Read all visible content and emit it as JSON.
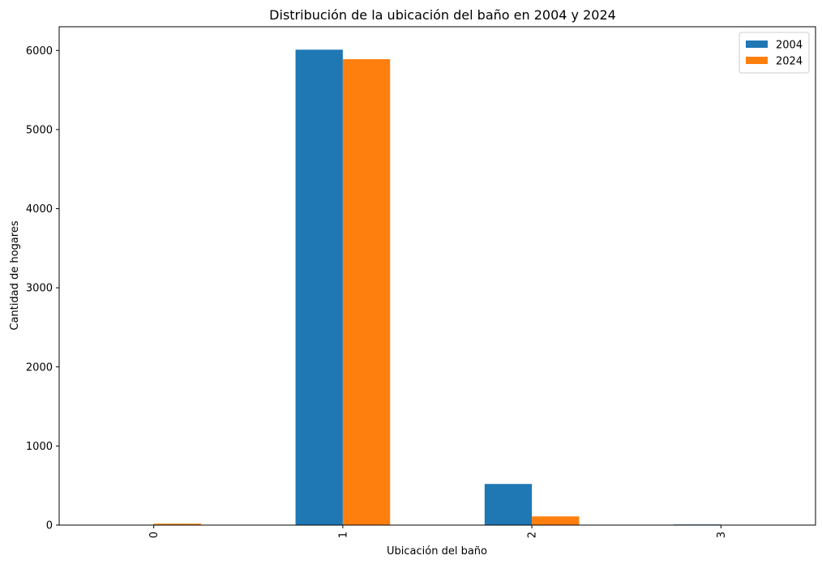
{
  "chart_data": {
    "type": "bar",
    "title": "Distribución de la ubicación del baño en 2004 y 2024",
    "xlabel": "Ubicación del baño",
    "ylabel": "Cantidad de hogares",
    "categories": [
      "0",
      "1",
      "2",
      "3"
    ],
    "series": [
      {
        "name": "2004",
        "color": "#1f77b4",
        "values": [
          0,
          6010,
          520,
          8
        ]
      },
      {
        "name": "2024",
        "color": "#ff7f0e",
        "values": [
          18,
          5890,
          110,
          0
        ]
      }
    ],
    "ylim": [
      0,
      6300
    ],
    "yticks": [
      0,
      1000,
      2000,
      3000,
      4000,
      5000,
      6000
    ],
    "xtick_rotation": 90,
    "grid": false,
    "legend_position": "top-right"
  }
}
